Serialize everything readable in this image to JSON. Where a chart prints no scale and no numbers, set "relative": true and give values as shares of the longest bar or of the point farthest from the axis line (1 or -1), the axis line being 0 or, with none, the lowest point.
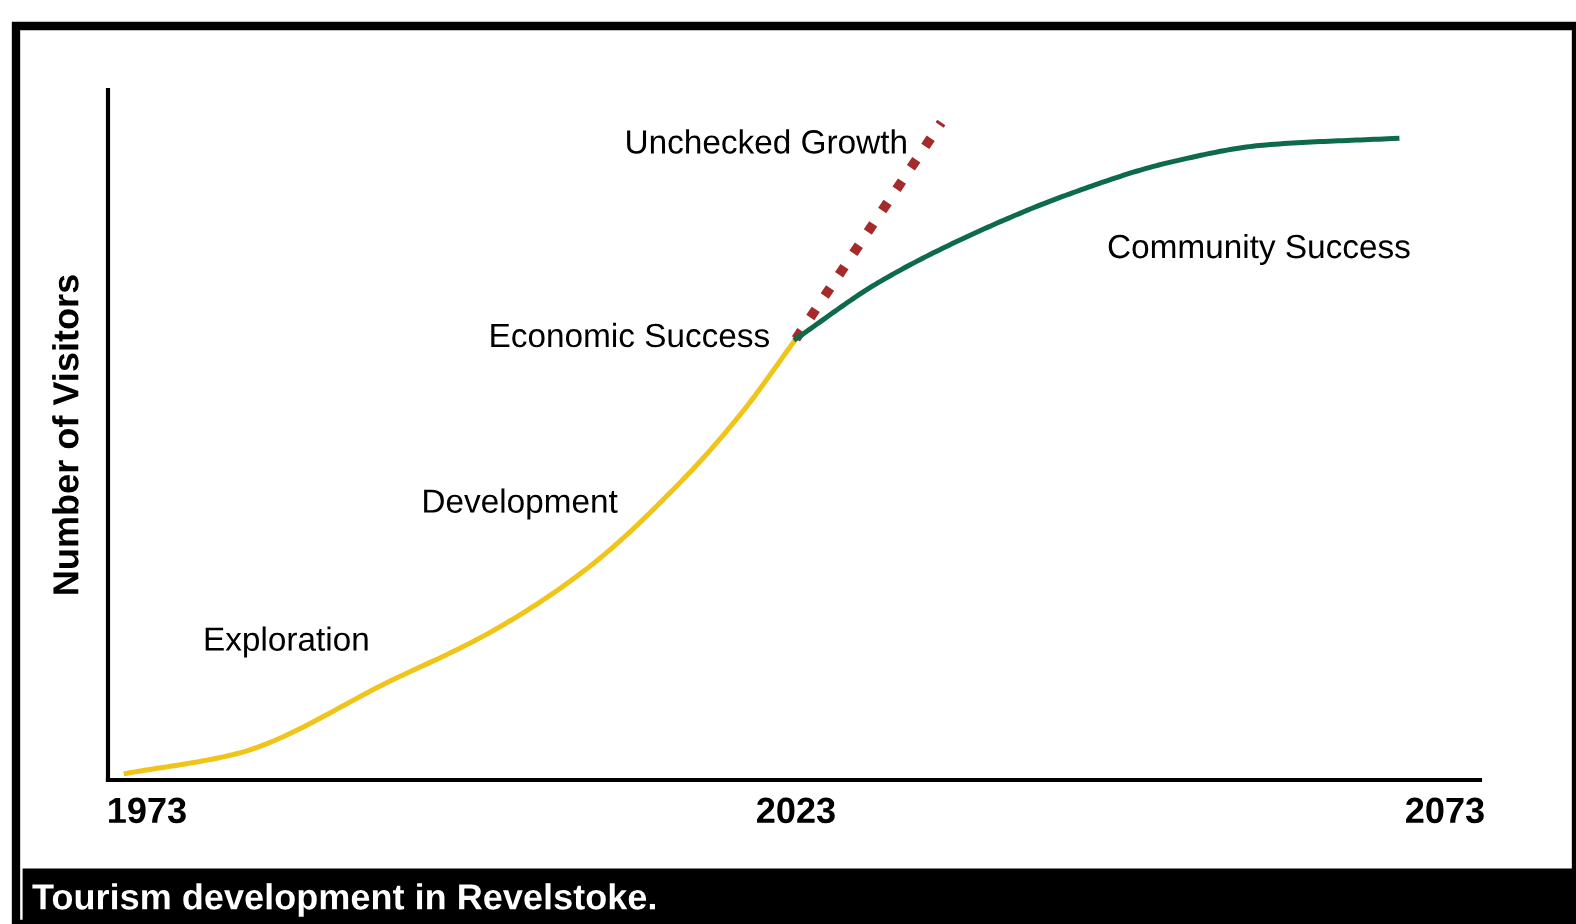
{
  "chart_data": {
    "type": "line",
    "relative": true,
    "ylabel": "Number of Visitors",
    "xlim": [
      1970,
      2075.7
    ],
    "xticks": [
      1973,
      2023,
      2073
    ],
    "grid": false,
    "legend": false,
    "marker": "none",
    "series": [
      {
        "color": "#f0c419",
        "line_style": "solid",
        "x": [
          1971.4,
          1979.9,
          1991.9,
          1999.3,
          2006.8,
          2014.3,
          2018.8,
          2023
        ],
        "values": [
          0.01,
          0.04,
          0.152,
          0.223,
          0.32,
          0.457,
          0.558,
          0.671
        ]
      },
      {
        "name": "Unchecked Growth",
        "color": "#a52a2a",
        "line_style": "dotted",
        "x": [
          2023,
          2034.2
        ],
        "values": [
          0.671,
          1.0
        ]
      },
      {
        "name": "Community Success",
        "color": "#0e6b4a",
        "line_style": "solid",
        "x": [
          2023,
          2029.3,
          2036.8,
          2044.3,
          2051.7,
          2059.2,
          2069.3
        ],
        "values": [
          0.671,
          0.756,
          0.832,
          0.893,
          0.939,
          0.966,
          0.976
        ]
      }
    ],
    "annotations": [
      "Exploration",
      "Development",
      "Economic Success",
      "Tourism development in Revelstoke."
    ]
  }
}
